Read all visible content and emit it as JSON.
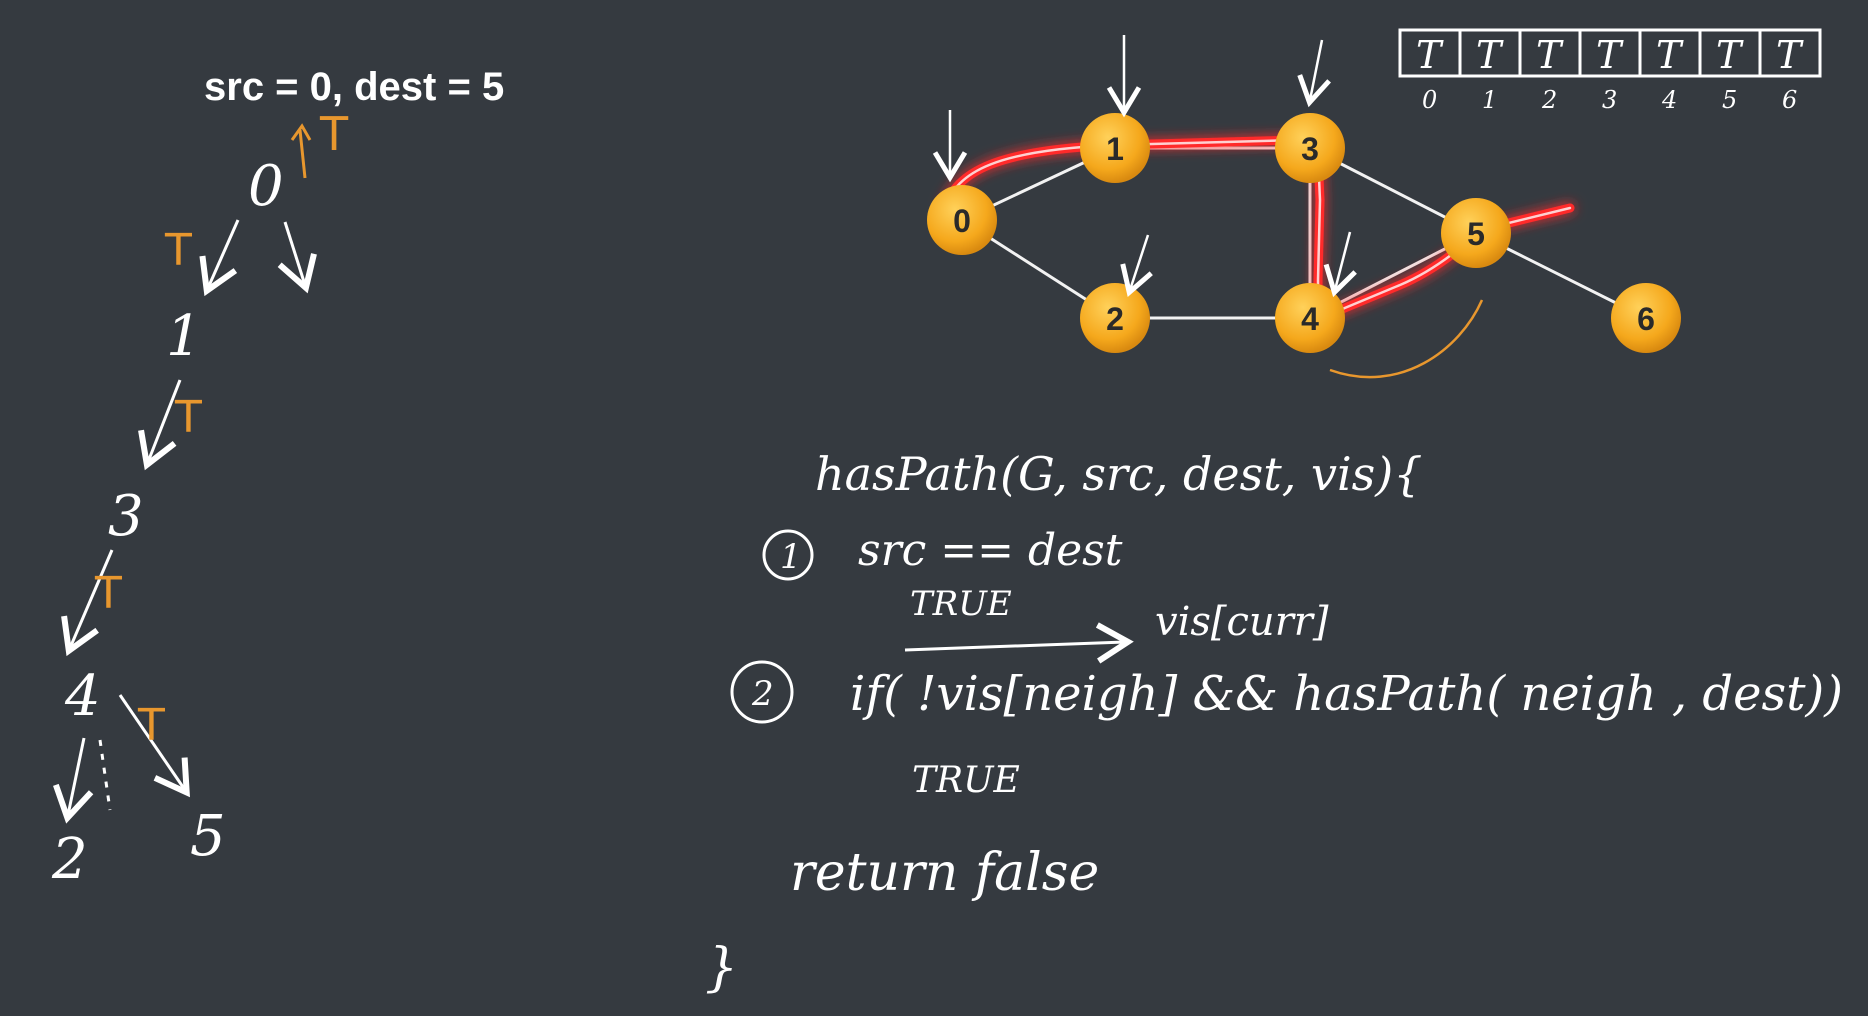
{
  "heading": "src = 0, dest = 5",
  "tree": {
    "root_label": "0",
    "mark": "T",
    "nodes": [
      "1",
      "3",
      "4",
      "2",
      "5"
    ],
    "edge_marks": [
      "T",
      "T",
      "T",
      "T"
    ]
  },
  "visited_array": {
    "cells": [
      "T",
      "T",
      "T",
      "T",
      "T",
      "T",
      "T"
    ],
    "indices": [
      "0",
      "1",
      "2",
      "3",
      "4",
      "5",
      "6"
    ]
  },
  "graph": {
    "nodes": [
      {
        "id": "0",
        "label": "0"
      },
      {
        "id": "1",
        "label": "1"
      },
      {
        "id": "2",
        "label": "2"
      },
      {
        "id": "3",
        "label": "3"
      },
      {
        "id": "4",
        "label": "4"
      },
      {
        "id": "5",
        "label": "5"
      },
      {
        "id": "6",
        "label": "6"
      }
    ],
    "edges": [
      [
        "0",
        "1"
      ],
      [
        "0",
        "2"
      ],
      [
        "1",
        "3"
      ],
      [
        "2",
        "4"
      ],
      [
        "3",
        "4"
      ],
      [
        "3",
        "5"
      ],
      [
        "4",
        "5"
      ],
      [
        "5",
        "6"
      ]
    ],
    "node_color": "#f5a81c",
    "path_color": "#ff2a2a"
  },
  "code": {
    "signature": "hasPath(G, src, dest, vis){",
    "step1_num": "1",
    "step1_line": "src == dest",
    "step1_note": "TRUE",
    "step1_result": "vis[curr]",
    "step2_num": "2",
    "step2_line": "if( !vis[neigh] && hasPath( neigh , dest))",
    "step2_note": "TRUE",
    "return_line": "return false",
    "close_brace": "}"
  }
}
